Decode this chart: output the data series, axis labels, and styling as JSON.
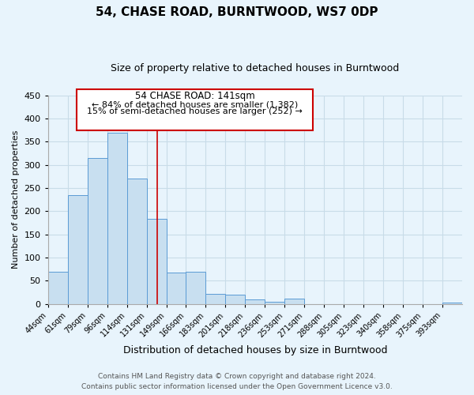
{
  "title": "54, CHASE ROAD, BURNTWOOD, WS7 0DP",
  "subtitle": "Size of property relative to detached houses in Burntwood",
  "xlabel": "Distribution of detached houses by size in Burntwood",
  "ylabel": "Number of detached properties",
  "bin_labels": [
    "44sqm",
    "61sqm",
    "79sqm",
    "96sqm",
    "114sqm",
    "131sqm",
    "149sqm",
    "166sqm",
    "183sqm",
    "201sqm",
    "218sqm",
    "236sqm",
    "253sqm",
    "271sqm",
    "288sqm",
    "305sqm",
    "323sqm",
    "340sqm",
    "358sqm",
    "375sqm",
    "393sqm"
  ],
  "bar_heights": [
    70,
    235,
    315,
    370,
    270,
    183,
    68,
    70,
    22,
    20,
    10,
    5,
    12,
    0,
    0,
    0,
    0,
    0,
    0,
    0,
    3
  ],
  "bar_color": "#c8dff0",
  "bar_edge_color": "#5b9bd5",
  "ylim": [
    0,
    450
  ],
  "yticks": [
    0,
    50,
    100,
    150,
    200,
    250,
    300,
    350,
    400,
    450
  ],
  "annotation_title": "54 CHASE ROAD: 141sqm",
  "annotation_line1": "← 84% of detached houses are smaller (1,382)",
  "annotation_line2": "15% of semi-detached houses are larger (252) →",
  "annotation_box_color": "#ffffff",
  "annotation_box_edge": "#cc0000",
  "red_line_color": "#cc0000",
  "footer_line1": "Contains HM Land Registry data © Crown copyright and database right 2024.",
  "footer_line2": "Contains public sector information licensed under the Open Government Licence v3.0.",
  "grid_color": "#c8dce8",
  "background_color": "#e8f4fc",
  "title_fontsize": 11,
  "subtitle_fontsize": 9
}
